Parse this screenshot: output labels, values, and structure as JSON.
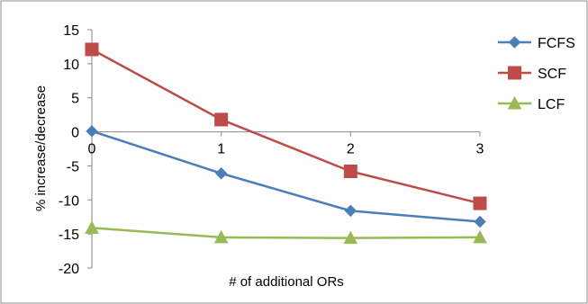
{
  "chart_data": {
    "type": "line",
    "title": "",
    "xlabel": "# of additional ORs",
    "ylabel": "% increase/decrease",
    "x": [
      0,
      1,
      2,
      3
    ],
    "x_tick_labels": [
      "0",
      "1",
      "2",
      "3"
    ],
    "ylim": [
      -20,
      15
    ],
    "y_ticks": [
      15,
      10,
      5,
      0,
      -5,
      -10,
      -15,
      -20
    ],
    "y_tick_labels": [
      "15",
      "10",
      "5",
      "0",
      "-5",
      "-10",
      "-15",
      "-20"
    ],
    "grid": false,
    "legend_position": "right",
    "series": [
      {
        "name": "FCFS",
        "color": "#4a7ebb",
        "marker": "diamond",
        "values": [
          0.1,
          -6.1,
          -11.6,
          -13.2
        ]
      },
      {
        "name": "SCF",
        "color": "#be4b48",
        "marker": "square",
        "values": [
          12.1,
          1.8,
          -5.8,
          -10.5
        ]
      },
      {
        "name": "LCF",
        "color": "#98b954",
        "marker": "triangle",
        "values": [
          -14.1,
          -15.5,
          -15.6,
          -15.5
        ]
      }
    ]
  }
}
